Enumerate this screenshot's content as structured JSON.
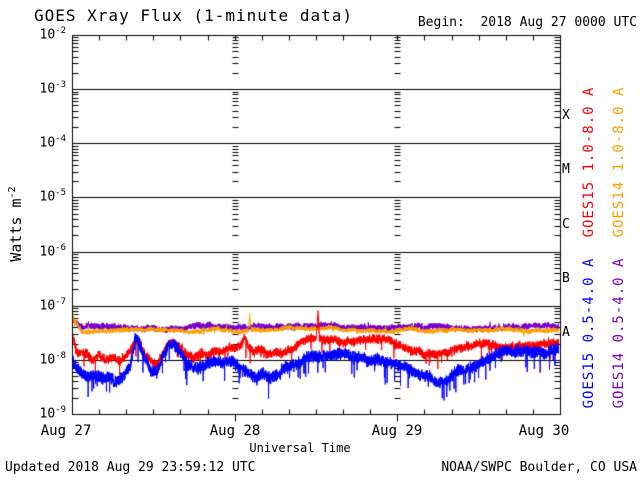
{
  "title": "GOES Xray Flux (1-minute data)",
  "begin_label": "Begin:  2018 Aug 27 0000 UTC",
  "footer": {
    "updated": "Updated 2018 Aug 29 23:59:12 UTC",
    "source": "NOAA/SWPC Boulder, CO USA"
  },
  "chart_data": {
    "type": "line",
    "title": "GOES Xray Flux (1-minute data)",
    "begin": "2018 Aug 27 0000 UTC",
    "updated": "2018 Aug 29 23:59:12 UTC",
    "x_label": "Universal Time",
    "y_label_base": "Watts m",
    "y_label_exp": "-2",
    "y_tick_base": "10",
    "y_exponents": [
      -2,
      -3,
      -4,
      -5,
      -6,
      -7,
      -8,
      -9
    ],
    "y_range_log10": [
      -9,
      -2
    ],
    "x_range_hours": [
      0,
      72
    ],
    "x_minor_tick_hours": 4,
    "x_day_labels": [
      "Aug 27",
      "Aug 28",
      "Aug 29",
      "Aug 30"
    ],
    "grid": "horizontal line each decade; dashed tick columns at day boundaries",
    "legend_position": "right, rotated",
    "flare_classes": [
      {
        "label": "X",
        "log_center": -3.5
      },
      {
        "label": "M",
        "log_center": -4.5
      },
      {
        "label": "C",
        "log_center": -5.5
      },
      {
        "label": "B",
        "log_center": -6.5
      },
      {
        "label": "A",
        "log_center": -7.5
      }
    ],
    "series": [
      {
        "name": "GOES15 1.0-8.0 A",
        "satellite": "GOES15",
        "channel": "1.0-8.0 A",
        "color": "#ff0000",
        "z": 2,
        "keyframes": {
          "t_hours": [
            0,
            0.7,
            2,
            3,
            4,
            5,
            6,
            7,
            8,
            9,
            9.4,
            10,
            10.8,
            11.5,
            12.5,
            13.2,
            14,
            15,
            16,
            17,
            18,
            19,
            20,
            21,
            22,
            23,
            24,
            25,
            25.5,
            26,
            27,
            28,
            29,
            30,
            31,
            32,
            33,
            34,
            35,
            36,
            36.15,
            36.3,
            36.5,
            37,
            38,
            39,
            40,
            42,
            44,
            46,
            48,
            50,
            52,
            53.5,
            55,
            56,
            58,
            60,
            62,
            64,
            66,
            68,
            70,
            72
          ],
          "log10_watts_m2": [
            -7.52,
            -7.85,
            -7.82,
            -7.95,
            -7.85,
            -7.95,
            -7.88,
            -7.95,
            -7.85,
            -7.7,
            -7.56,
            -7.6,
            -7.85,
            -7.95,
            -8.05,
            -7.85,
            -7.65,
            -7.62,
            -7.7,
            -7.85,
            -7.9,
            -7.8,
            -7.85,
            -7.75,
            -7.8,
            -7.72,
            -7.75,
            -7.68,
            -7.52,
            -7.7,
            -7.8,
            -7.75,
            -7.85,
            -7.78,
            -7.82,
            -7.75,
            -7.7,
            -7.62,
            -7.6,
            -7.6,
            -7.35,
            -7.12,
            -7.55,
            -7.58,
            -7.55,
            -7.58,
            -7.6,
            -7.62,
            -7.62,
            -7.65,
            -7.68,
            -7.75,
            -7.82,
            -7.86,
            -7.84,
            -7.8,
            -7.72,
            -7.7,
            -7.68,
            -7.7,
            -7.67,
            -7.68,
            -7.65,
            -7.62
          ]
        },
        "render": {
          "amp": 0.1,
          "wander": 0.012,
          "wclamp": 0.08,
          "spike_p": 0.01,
          "spike_a": 0.3,
          "spike_dir": -1,
          "seed": 7
        }
      },
      {
        "name": "GOES14 1.0-8.0 A",
        "satellite": "GOES14",
        "channel": "1.0-8.0 A",
        "color": "#ff9f00",
        "z": 1,
        "keyframes": {
          "t_hours": [
            0,
            0.3,
            1.5,
            6,
            12,
            18,
            21,
            24,
            26,
            26.2,
            26.5,
            30,
            33,
            36,
            38,
            40,
            44,
            48,
            56,
            64,
            72
          ],
          "log10_watts_m2": [
            -7.1,
            -7.25,
            -7.46,
            -7.48,
            -7.47,
            -7.45,
            -7.42,
            -7.46,
            -7.45,
            -7.18,
            -7.45,
            -7.43,
            -7.39,
            -7.4,
            -7.38,
            -7.42,
            -7.43,
            -7.45,
            -7.46,
            -7.45,
            -7.44
          ]
        },
        "render": {
          "amp": 0.05,
          "wander": 0.008,
          "wclamp": 0.04,
          "spike_p": 0.004,
          "spike_a": 0.1,
          "spike_dir": 0,
          "seed": 21
        }
      },
      {
        "name": "GOES15 0.5-4.0 A",
        "satellite": "GOES15",
        "channel": "0.5-4.0 A",
        "color": "#0000ff",
        "z": 3,
        "keyframes": {
          "t_hours": [
            0,
            0.5,
            1.5,
            2.5,
            3.5,
            4.5,
            5.5,
            6.5,
            7.5,
            8.5,
            9,
            9.35,
            9.8,
            10.5,
            11.5,
            12.5,
            13.2,
            14,
            15,
            16,
            17,
            18,
            19,
            20,
            21,
            22,
            23,
            24,
            25,
            26,
            27,
            28,
            29,
            30,
            31,
            32,
            33,
            34,
            35,
            36,
            37,
            38,
            39,
            40,
            42,
            44,
            46,
            48,
            49,
            50,
            51,
            52,
            53,
            54,
            55,
            56,
            57,
            58,
            59,
            60,
            62,
            64,
            66,
            68,
            70,
            72
          ],
          "log10_watts_m2": [
            -7.95,
            -8.1,
            -8.25,
            -8.35,
            -8.3,
            -8.4,
            -8.35,
            -8.4,
            -8.3,
            -8.1,
            -7.85,
            -7.5,
            -7.58,
            -7.9,
            -8.1,
            -8.15,
            -7.95,
            -7.7,
            -7.68,
            -7.8,
            -8.0,
            -8.1,
            -8.05,
            -8.0,
            -7.95,
            -8.0,
            -7.95,
            -8.0,
            -8.1,
            -8.2,
            -8.3,
            -8.25,
            -8.35,
            -8.25,
            -8.15,
            -8.05,
            -8.0,
            -7.95,
            -7.92,
            -7.95,
            -7.9,
            -7.88,
            -7.9,
            -7.92,
            -7.95,
            -7.92,
            -7.95,
            -8.0,
            -8.05,
            -8.15,
            -8.25,
            -8.3,
            -8.25,
            -8.35,
            -8.3,
            -8.25,
            -8.15,
            -8.1,
            -8.05,
            -8.0,
            -7.95,
            -7.92,
            -7.95,
            -7.9,
            -7.92,
            -7.9
          ]
        },
        "render": {
          "amp": 0.13,
          "wander": 0.015,
          "wclamp": 0.1,
          "spike_p": 0.018,
          "spike_a": 0.38,
          "spike_dir": -1,
          "seed": 13
        }
      },
      {
        "name": "GOES14 0.5-4.0 A",
        "satellite": "GOES14",
        "channel": "0.5-4.0 A",
        "color": "#7a00c8",
        "z": 0,
        "keyframes": {
          "t_hours": [
            0,
            1.5,
            6,
            12,
            18,
            24,
            30,
            33,
            36,
            40,
            48,
            56,
            64,
            72
          ],
          "log10_watts_m2": [
            -7.25,
            -7.4,
            -7.42,
            -7.41,
            -7.39,
            -7.4,
            -7.38,
            -7.34,
            -7.36,
            -7.37,
            -7.4,
            -7.41,
            -7.4,
            -7.39
          ]
        },
        "render": {
          "amp": 0.07,
          "wander": 0.008,
          "wclamp": 0.04,
          "spike_p": 0.004,
          "spike_a": 0.1,
          "spike_dir": 0,
          "seed": 42
        }
      }
    ]
  }
}
